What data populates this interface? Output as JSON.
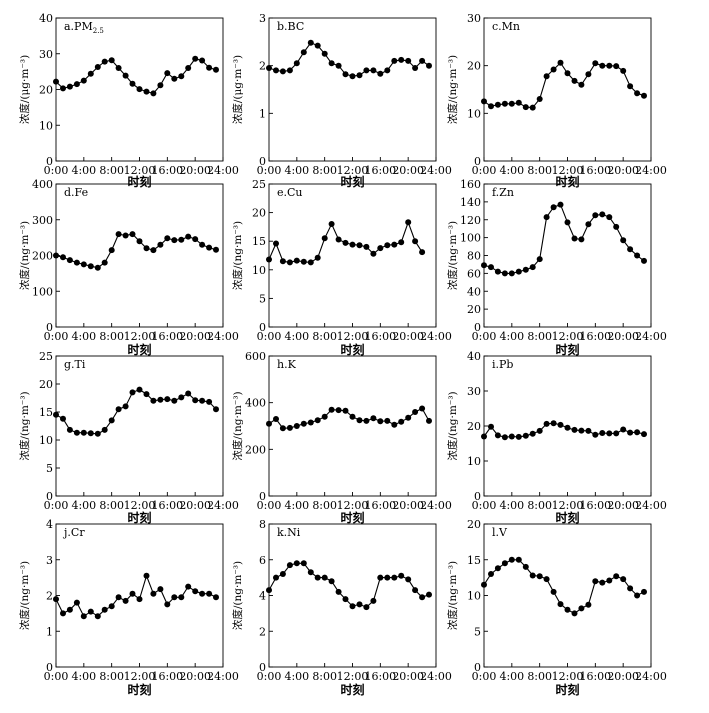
{
  "figure": {
    "xlabel": "时刻",
    "xticks": [
      "0:00",
      "4:00",
      "8:00",
      "12:00",
      "16:00",
      "20:00",
      "24:00"
    ]
  },
  "chart_data": [
    {
      "type": "line",
      "panel": "a",
      "title": "a.PM",
      "title_sub": "2.5",
      "ylabel": "浓度/(μg·m⁻³)",
      "ylim": [
        0,
        40
      ],
      "yticks": [
        0,
        10,
        20,
        30,
        40
      ],
      "xlim": [
        0,
        24
      ],
      "x": [
        0,
        1,
        2,
        3,
        4,
        5,
        6,
        7,
        8,
        9,
        10,
        11,
        12,
        13,
        14,
        15,
        16,
        17,
        18,
        19,
        20,
        21,
        22,
        23
      ],
      "values": [
        22.2,
        20.3,
        20.8,
        21.5,
        22.5,
        24.4,
        26.3,
        27.8,
        28.2,
        26.0,
        23.9,
        21.6,
        20.1,
        19.4,
        18.9,
        21.2,
        24.6,
        23.0,
        23.7,
        26.0,
        28.6,
        28.1,
        26.1,
        25.5
      ]
    },
    {
      "type": "line",
      "panel": "b",
      "title": "b.BC",
      "title_sub": "",
      "ylabel": "浓度/(μg·m⁻³)",
      "ylim": [
        0,
        3
      ],
      "yticks": [
        0,
        1,
        2,
        3
      ],
      "xlim": [
        0,
        24
      ],
      "x": [
        0,
        1,
        2,
        3,
        4,
        5,
        6,
        7,
        8,
        9,
        10,
        11,
        12,
        13,
        14,
        15,
        16,
        17,
        18,
        19,
        20,
        21,
        22,
        23
      ],
      "values": [
        1.95,
        1.9,
        1.88,
        1.9,
        2.05,
        2.28,
        2.48,
        2.42,
        2.25,
        2.05,
        2.0,
        1.82,
        1.78,
        1.8,
        1.9,
        1.9,
        1.83,
        1.9,
        2.1,
        2.12,
        2.1,
        1.95,
        2.1,
        2.0
      ]
    },
    {
      "type": "line",
      "panel": "c",
      "title": "c.Mn",
      "title_sub": "",
      "ylabel": "浓度/(ng·m⁻³)",
      "ylim": [
        0,
        30
      ],
      "yticks": [
        0,
        10,
        20,
        30
      ],
      "xlim": [
        0,
        24
      ],
      "x": [
        0,
        1,
        2,
        3,
        4,
        5,
        6,
        7,
        8,
        9,
        10,
        11,
        12,
        13,
        14,
        15,
        16,
        17,
        18,
        19,
        20,
        21,
        22,
        23
      ],
      "values": [
        12.5,
        11.5,
        11.8,
        12.0,
        12.0,
        12.2,
        11.3,
        11.2,
        13.0,
        17.8,
        19.2,
        20.6,
        18.4,
        16.8,
        16.0,
        18.2,
        20.5,
        20.0,
        20.0,
        19.9,
        18.9,
        15.7,
        14.2,
        13.7
      ]
    },
    {
      "type": "line",
      "panel": "d",
      "title": "d.Fe",
      "title_sub": "",
      "ylabel": "浓度/(ng·m⁻³)",
      "ylim": [
        0,
        400
      ],
      "yticks": [
        0,
        100,
        200,
        300,
        400
      ],
      "xlim": [
        0,
        24
      ],
      "x": [
        0,
        1,
        2,
        3,
        4,
        5,
        6,
        7,
        8,
        9,
        10,
        11,
        12,
        13,
        14,
        15,
        16,
        17,
        18,
        19,
        20,
        21,
        22,
        23
      ],
      "values": [
        200,
        195,
        187,
        180,
        175,
        170,
        166,
        180,
        215,
        260,
        256,
        260,
        240,
        220,
        215,
        230,
        248,
        243,
        244,
        253,
        246,
        230,
        222,
        216
      ]
    },
    {
      "type": "line",
      "panel": "e",
      "title": "e.Cu",
      "title_sub": "",
      "ylabel": "浓度/(ng·m⁻³)",
      "ylim": [
        0,
        25
      ],
      "yticks": [
        0,
        5,
        10,
        15,
        20,
        25
      ],
      "xlim": [
        0,
        24
      ],
      "x": [
        0,
        1,
        2,
        3,
        4,
        5,
        6,
        7,
        8,
        9,
        10,
        11,
        12,
        13,
        14,
        15,
        16,
        17,
        18,
        19,
        20,
        21,
        22,
        23
      ],
      "values": [
        11.8,
        14.6,
        11.5,
        11.3,
        11.6,
        11.4,
        11.3,
        12.1,
        15.5,
        18.0,
        15.3,
        14.7,
        14.4,
        14.3,
        14.0,
        12.8,
        13.8,
        14.3,
        14.4,
        14.8,
        18.3,
        15.0,
        13.1,
        null
      ]
    },
    {
      "type": "line",
      "panel": "f",
      "title": "f.Zn",
      "title_sub": "",
      "ylabel": "浓度/(ng·m⁻³)",
      "ylim": [
        0,
        160
      ],
      "yticks": [
        0,
        20,
        40,
        60,
        80,
        100,
        120,
        140,
        160
      ],
      "xlim": [
        0,
        24
      ],
      "x": [
        0,
        1,
        2,
        3,
        4,
        5,
        6,
        7,
        8,
        9,
        10,
        11,
        12,
        13,
        14,
        15,
        16,
        17,
        18,
        19,
        20,
        21,
        22,
        23
      ],
      "values": [
        69,
        67,
        62,
        60,
        60,
        62,
        64,
        67,
        76,
        123,
        134,
        137,
        117,
        99,
        98,
        115,
        125,
        126,
        123,
        112,
        97,
        87,
        80,
        74
      ]
    },
    {
      "type": "line",
      "panel": "g",
      "title": "g.Ti",
      "title_sub": "",
      "ylabel": "浓度/(ng·m⁻³)",
      "ylim": [
        0,
        25
      ],
      "yticks": [
        0,
        5,
        10,
        15,
        20,
        25
      ],
      "xlim": [
        0,
        24
      ],
      "x": [
        0,
        1,
        2,
        3,
        4,
        5,
        6,
        7,
        8,
        9,
        10,
        11,
        12,
        13,
        14,
        15,
        16,
        17,
        18,
        19,
        20,
        21,
        22,
        23
      ],
      "values": [
        14.5,
        13.8,
        11.8,
        11.3,
        11.3,
        11.2,
        11.1,
        11.8,
        13.5,
        15.5,
        16.0,
        18.5,
        19.0,
        18.2,
        17.0,
        17.2,
        17.3,
        17.0,
        17.6,
        18.3,
        17.1,
        17.0,
        16.8,
        15.5
      ]
    },
    {
      "type": "line",
      "panel": "h",
      "title": "h.K",
      "title_sub": "",
      "ylabel": "浓度/(ng·m⁻³)",
      "ylim": [
        0,
        600
      ],
      "yticks": [
        0,
        200,
        400,
        600
      ],
      "xlim": [
        0,
        24
      ],
      "x": [
        0,
        1,
        2,
        3,
        4,
        5,
        6,
        7,
        8,
        9,
        10,
        11,
        12,
        13,
        14,
        15,
        16,
        17,
        18,
        19,
        20,
        21,
        22,
        23
      ],
      "values": [
        310,
        330,
        290,
        292,
        300,
        310,
        315,
        325,
        340,
        370,
        368,
        365,
        340,
        325,
        322,
        333,
        320,
        322,
        305,
        318,
        335,
        360,
        375,
        322
      ]
    },
    {
      "type": "line",
      "panel": "i",
      "title": "i.Pb",
      "title_sub": "",
      "ylabel": "浓度/(ng·m⁻³)",
      "ylim": [
        0,
        40
      ],
      "yticks": [
        0,
        10,
        20,
        30,
        40
      ],
      "xlim": [
        0,
        24
      ],
      "x": [
        0,
        1,
        2,
        3,
        4,
        5,
        6,
        7,
        8,
        9,
        10,
        11,
        12,
        13,
        14,
        15,
        16,
        17,
        18,
        19,
        20,
        21,
        22,
        23
      ],
      "values": [
        17.0,
        19.8,
        17.3,
        16.8,
        17.0,
        16.9,
        17.2,
        17.8,
        18.6,
        20.6,
        20.8,
        20.3,
        19.5,
        18.9,
        18.7,
        18.6,
        17.5,
        18.0,
        17.9,
        17.9,
        19.0,
        18.1,
        18.2,
        17.7
      ]
    },
    {
      "type": "line",
      "panel": "j",
      "title": "j.Cr",
      "title_sub": "",
      "ylabel": "浓度/(ng·m⁻³)",
      "ylim": [
        0,
        4
      ],
      "yticks": [
        0,
        1,
        2,
        3,
        4
      ],
      "xlim": [
        0,
        24
      ],
      "x": [
        0,
        1,
        2,
        3,
        4,
        5,
        6,
        7,
        8,
        9,
        10,
        11,
        12,
        13,
        14,
        15,
        16,
        17,
        18,
        19,
        20,
        21,
        22,
        23
      ],
      "values": [
        1.9,
        1.5,
        1.6,
        1.8,
        1.42,
        1.55,
        1.42,
        1.6,
        1.7,
        1.95,
        1.85,
        2.05,
        1.9,
        2.55,
        2.05,
        2.18,
        1.75,
        1.95,
        1.95,
        2.25,
        2.12,
        2.05,
        2.05,
        1.95
      ]
    },
    {
      "type": "line",
      "panel": "k",
      "title": "k.Ni",
      "title_sub": "",
      "ylabel": "浓度/(ng·m⁻³)",
      "ylim": [
        0,
        8
      ],
      "yticks": [
        0,
        2,
        4,
        6,
        8
      ],
      "xlim": [
        0,
        24
      ],
      "x": [
        0,
        1,
        2,
        3,
        4,
        5,
        6,
        7,
        8,
        9,
        10,
        11,
        12,
        13,
        14,
        15,
        16,
        17,
        18,
        19,
        20,
        21,
        22,
        23
      ],
      "values": [
        4.3,
        5.0,
        5.2,
        5.7,
        5.8,
        5.8,
        5.3,
        5.0,
        5.0,
        4.8,
        4.2,
        3.8,
        3.4,
        3.5,
        3.35,
        3.7,
        5.0,
        5.0,
        5.0,
        5.1,
        4.9,
        4.3,
        3.9,
        4.05
      ]
    },
    {
      "type": "line",
      "panel": "l",
      "title": "l.V",
      "title_sub": "",
      "ylabel": "浓度/(ng·m⁻³)",
      "ylim": [
        0,
        20
      ],
      "yticks": [
        0,
        5,
        10,
        15,
        20
      ],
      "xlim": [
        0,
        24
      ],
      "x": [
        0,
        1,
        2,
        3,
        4,
        5,
        6,
        7,
        8,
        9,
        10,
        11,
        12,
        13,
        14,
        15,
        16,
        17,
        18,
        19,
        20,
        21,
        22,
        23
      ],
      "values": [
        11.5,
        13.0,
        13.8,
        14.5,
        15.0,
        15.0,
        14.0,
        12.8,
        12.7,
        12.3,
        10.5,
        8.8,
        8.0,
        7.5,
        8.2,
        8.7,
        12.0,
        11.8,
        12.1,
        12.7,
        12.3,
        11.0,
        10.0,
        10.5
      ]
    }
  ]
}
